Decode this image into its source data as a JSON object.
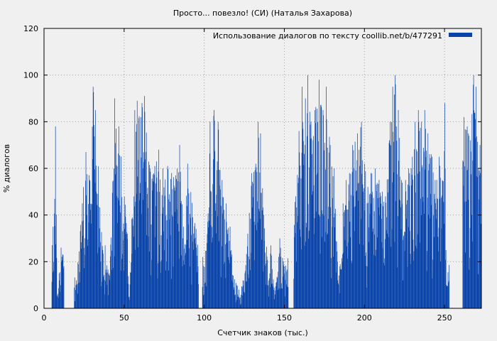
{
  "chart_data": {
    "type": "bar",
    "title": "Просто... повезло! (СИ) (Наталья Захарова)",
    "xlabel": "Счетчик знаков (тыс.)",
    "ylabel": "% диалогов",
    "xlim": [
      0,
      273
    ],
    "ylim": [
      0,
      120
    ],
    "xticks": [
      0,
      50,
      100,
      150,
      200,
      250
    ],
    "yticks": [
      0,
      20,
      40,
      60,
      80,
      100,
      120
    ],
    "grid": true,
    "legend_position": "top-right",
    "colors": {
      "series": "#0a44aa",
      "background": "#f0f0f0",
      "grid": "#a0a0a0"
    },
    "series": [
      {
        "name": "Использование диалогов по тексту  coollib.net/b/477291",
        "peaks": [
          {
            "x": 5.5,
            "y": 35
          },
          {
            "x": 7,
            "y": 78
          },
          {
            "x": 8,
            "y": 5
          },
          {
            "x": 10.5,
            "y": 26
          },
          {
            "x": 20,
            "y": 12
          },
          {
            "x": 24.5,
            "y": 52
          },
          {
            "x": 26,
            "y": 67
          },
          {
            "x": 28.5,
            "y": 55
          },
          {
            "x": 30.5,
            "y": 95
          },
          {
            "x": 32,
            "y": 85
          },
          {
            "x": 36.5,
            "y": 25
          },
          {
            "x": 38,
            "y": 27
          },
          {
            "x": 40.5,
            "y": 15
          },
          {
            "x": 44,
            "y": 90
          },
          {
            "x": 46.5,
            "y": 78
          },
          {
            "x": 52,
            "y": 32
          },
          {
            "x": 53,
            "y": 5
          },
          {
            "x": 56.5,
            "y": 85
          },
          {
            "x": 58,
            "y": 89
          },
          {
            "x": 61,
            "y": 88
          },
          {
            "x": 62.5,
            "y": 91
          },
          {
            "x": 66,
            "y": 60
          },
          {
            "x": 69,
            "y": 61
          },
          {
            "x": 71.5,
            "y": 68
          },
          {
            "x": 74,
            "y": 60
          },
          {
            "x": 77,
            "y": 61
          },
          {
            "x": 79.5,
            "y": 58
          },
          {
            "x": 82,
            "y": 57
          },
          {
            "x": 84.5,
            "y": 70
          },
          {
            "x": 87,
            "y": 35
          },
          {
            "x": 89.5,
            "y": 62
          },
          {
            "x": 99,
            "y": 22
          },
          {
            "x": 101.5,
            "y": 28
          },
          {
            "x": 103.5,
            "y": 80
          },
          {
            "x": 106,
            "y": 85
          },
          {
            "x": 108.5,
            "y": 80
          },
          {
            "x": 111,
            "y": 55
          },
          {
            "x": 113.5,
            "y": 45
          },
          {
            "x": 116,
            "y": 35
          },
          {
            "x": 118,
            "y": 14
          },
          {
            "x": 121.5,
            "y": 8
          },
          {
            "x": 124,
            "y": 12
          },
          {
            "x": 127,
            "y": 32
          },
          {
            "x": 129.5,
            "y": 58
          },
          {
            "x": 132,
            "y": 62
          },
          {
            "x": 133.5,
            "y": 80
          },
          {
            "x": 135,
            "y": 75
          },
          {
            "x": 140,
            "y": 12
          },
          {
            "x": 141.5,
            "y": 27
          },
          {
            "x": 144,
            "y": 6
          },
          {
            "x": 147,
            "y": 30
          },
          {
            "x": 150,
            "y": 18
          },
          {
            "x": 157,
            "y": 48
          },
          {
            "x": 159,
            "y": 76
          },
          {
            "x": 161,
            "y": 95
          },
          {
            "x": 163,
            "y": 90
          },
          {
            "x": 164.5,
            "y": 100
          },
          {
            "x": 166.5,
            "y": 80
          },
          {
            "x": 169,
            "y": 85
          },
          {
            "x": 171.5,
            "y": 98
          },
          {
            "x": 174,
            "y": 85
          },
          {
            "x": 176,
            "y": 95
          },
          {
            "x": 178.5,
            "y": 70
          },
          {
            "x": 181,
            "y": 60
          },
          {
            "x": 183,
            "y": 20
          },
          {
            "x": 184.5,
            "y": 18
          },
          {
            "x": 186.5,
            "y": 45
          },
          {
            "x": 188.5,
            "y": 55
          },
          {
            "x": 190.5,
            "y": 58
          },
          {
            "x": 192.5,
            "y": 70
          },
          {
            "x": 195.5,
            "y": 75
          },
          {
            "x": 198,
            "y": 80
          },
          {
            "x": 200,
            "y": 62
          },
          {
            "x": 202,
            "y": 52
          },
          {
            "x": 204,
            "y": 58
          },
          {
            "x": 206.5,
            "y": 60
          },
          {
            "x": 209,
            "y": 55
          },
          {
            "x": 211,
            "y": 50
          },
          {
            "x": 213,
            "y": 48
          },
          {
            "x": 216,
            "y": 80
          },
          {
            "x": 217.5,
            "y": 95
          },
          {
            "x": 219,
            "y": 100
          },
          {
            "x": 221,
            "y": 85
          },
          {
            "x": 223,
            "y": 55
          },
          {
            "x": 225.5,
            "y": 55
          },
          {
            "x": 227.5,
            "y": 60
          },
          {
            "x": 229,
            "y": 60
          },
          {
            "x": 231.5,
            "y": 80
          },
          {
            "x": 233.5,
            "y": 85
          },
          {
            "x": 235.5,
            "y": 80
          },
          {
            "x": 237.5,
            "y": 85
          },
          {
            "x": 239.5,
            "y": 75
          },
          {
            "x": 242,
            "y": 65
          },
          {
            "x": 244,
            "y": 55
          },
          {
            "x": 246.5,
            "y": 65
          },
          {
            "x": 248.5,
            "y": 55
          },
          {
            "x": 250,
            "y": 88
          },
          {
            "x": 251,
            "y": 10
          },
          {
            "x": 262,
            "y": 82
          },
          {
            "x": 264,
            "y": 78
          },
          {
            "x": 266,
            "y": 72
          },
          {
            "x": 268,
            "y": 100
          },
          {
            "x": 269.5,
            "y": 95
          },
          {
            "x": 271,
            "y": 60
          },
          {
            "x": 272,
            "y": 70
          },
          {
            "x": 273,
            "y": 48
          }
        ],
        "gaps": [
          [
            0,
            4.5
          ],
          [
            12.5,
            18.5
          ],
          [
            96.5,
            98.5
          ],
          [
            152.5,
            155.5
          ],
          [
            253,
            261
          ]
        ]
      }
    ]
  }
}
